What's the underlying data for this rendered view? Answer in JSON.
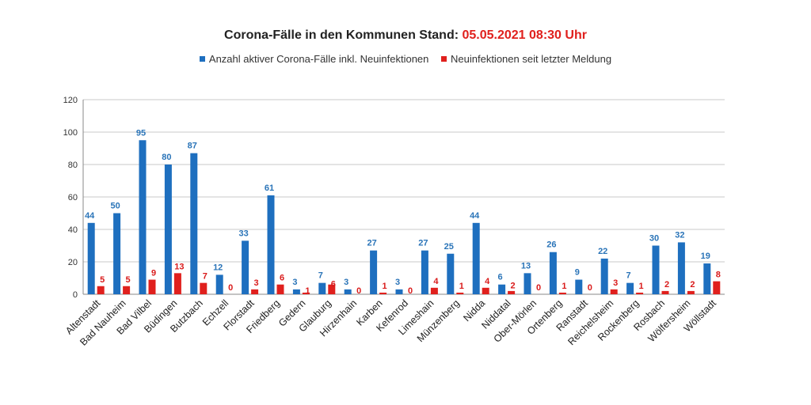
{
  "chart_data": {
    "type": "bar",
    "title": {
      "text": "Corona-Fälle in den Kommunen Stand: ",
      "date": "05.05.2021 08:30 Uhr"
    },
    "xlabel": "",
    "ylabel": "",
    "ylim": [
      0,
      120
    ],
    "yticks": [
      0,
      20,
      40,
      60,
      80,
      100,
      120
    ],
    "grid": true,
    "legend_position": "top-center",
    "colors": {
      "active": "#1e6fbf",
      "new": "#e0201d",
      "grid": "#c8c8c8",
      "axis": "#888888",
      "date": "#e0201d"
    },
    "categories": [
      "Altenstadt",
      "Bad Nauheim",
      "Bad Vilbel",
      "Büdingen",
      "Butzbach",
      "Echzell",
      "Florstadt",
      "Friedberg",
      "Gedern",
      "Glauburg",
      "Hirzenhain",
      "Karben",
      "Kefenrod",
      "Limeshain",
      "Münzenberg",
      "Nidda",
      "Niddatal",
      "Ober-Mörlen",
      "Ortenberg",
      "Ranstadt",
      "Reichelsheim",
      "Rockenberg",
      "Rosbach",
      "Wölfersheim",
      "Wöllstadt"
    ],
    "series": [
      {
        "name": "Anzahl aktiver Corona-Fälle inkl. Neuinfektionen",
        "values": [
          44,
          50,
          95,
          80,
          87,
          12,
          33,
          61,
          3,
          7,
          3,
          27,
          3,
          27,
          25,
          44,
          6,
          13,
          26,
          9,
          22,
          7,
          30,
          32,
          19
        ]
      },
      {
        "name": "Neuinfektionen seit letzter Meldung",
        "values": [
          5,
          5,
          9,
          13,
          7,
          0,
          3,
          6,
          1,
          6,
          0,
          1,
          0,
          4,
          1,
          4,
          2,
          0,
          1,
          0,
          3,
          1,
          2,
          2,
          8
        ]
      }
    ]
  }
}
